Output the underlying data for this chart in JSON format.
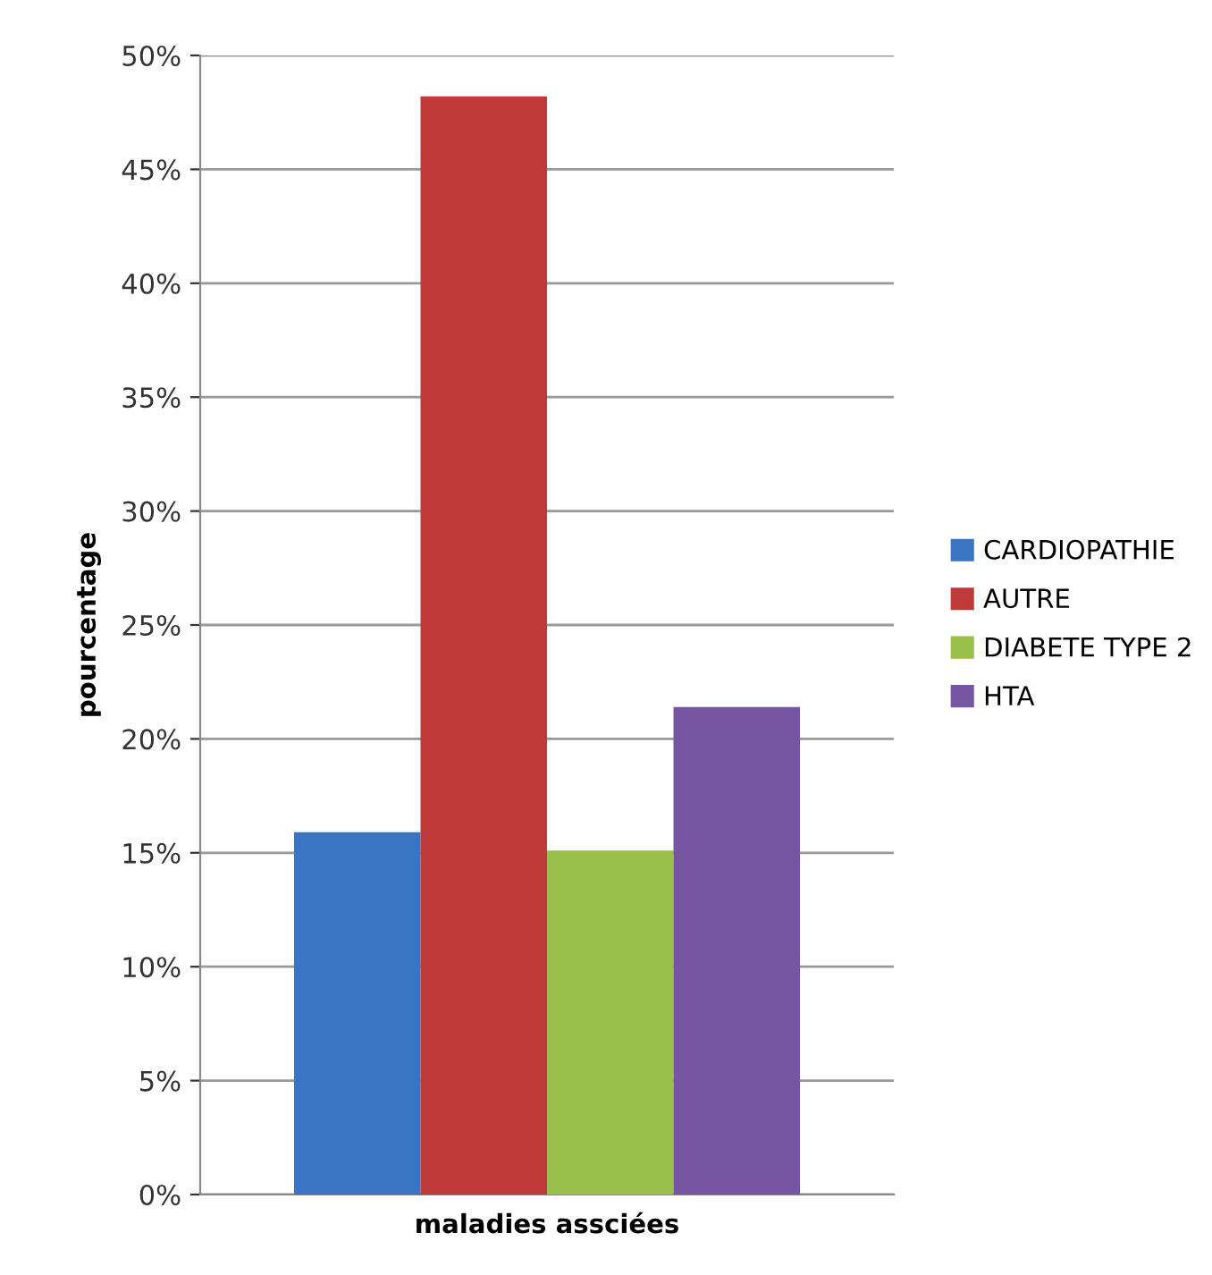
{
  "chart_data": {
    "type": "bar",
    "xlabel": "maladies assciées",
    "ylabel": "pourcentage",
    "categories": [
      null
    ],
    "series": [
      {
        "name": "CARDIOPATHIE",
        "color": "#3a75c4",
        "values": [
          15.9
        ]
      },
      {
        "name": "AUTRE",
        "color": "#c0393b",
        "values": [
          48.2
        ]
      },
      {
        "name": "DIABETE TYPE 2",
        "color": "#98c04a",
        "values": [
          15.1
        ]
      },
      {
        "name": "HTA",
        "color": "#7656a3",
        "values": [
          21.4
        ]
      }
    ],
    "ylim": [
      0,
      50
    ],
    "yticks": [
      {
        "value": 0,
        "label": "0%"
      },
      {
        "value": 5,
        "label": "5%"
      },
      {
        "value": 10,
        "label": "10%"
      },
      {
        "value": 15,
        "label": "15%"
      },
      {
        "value": 20,
        "label": "20%"
      },
      {
        "value": 25,
        "label": "25%"
      },
      {
        "value": 30,
        "label": "30%"
      },
      {
        "value": 35,
        "label": "35%"
      },
      {
        "value": 40,
        "label": "40%"
      },
      {
        "value": 45,
        "label": "45%"
      },
      {
        "value": 50,
        "label": "50%"
      }
    ],
    "grid": "y",
    "legend": "right"
  }
}
